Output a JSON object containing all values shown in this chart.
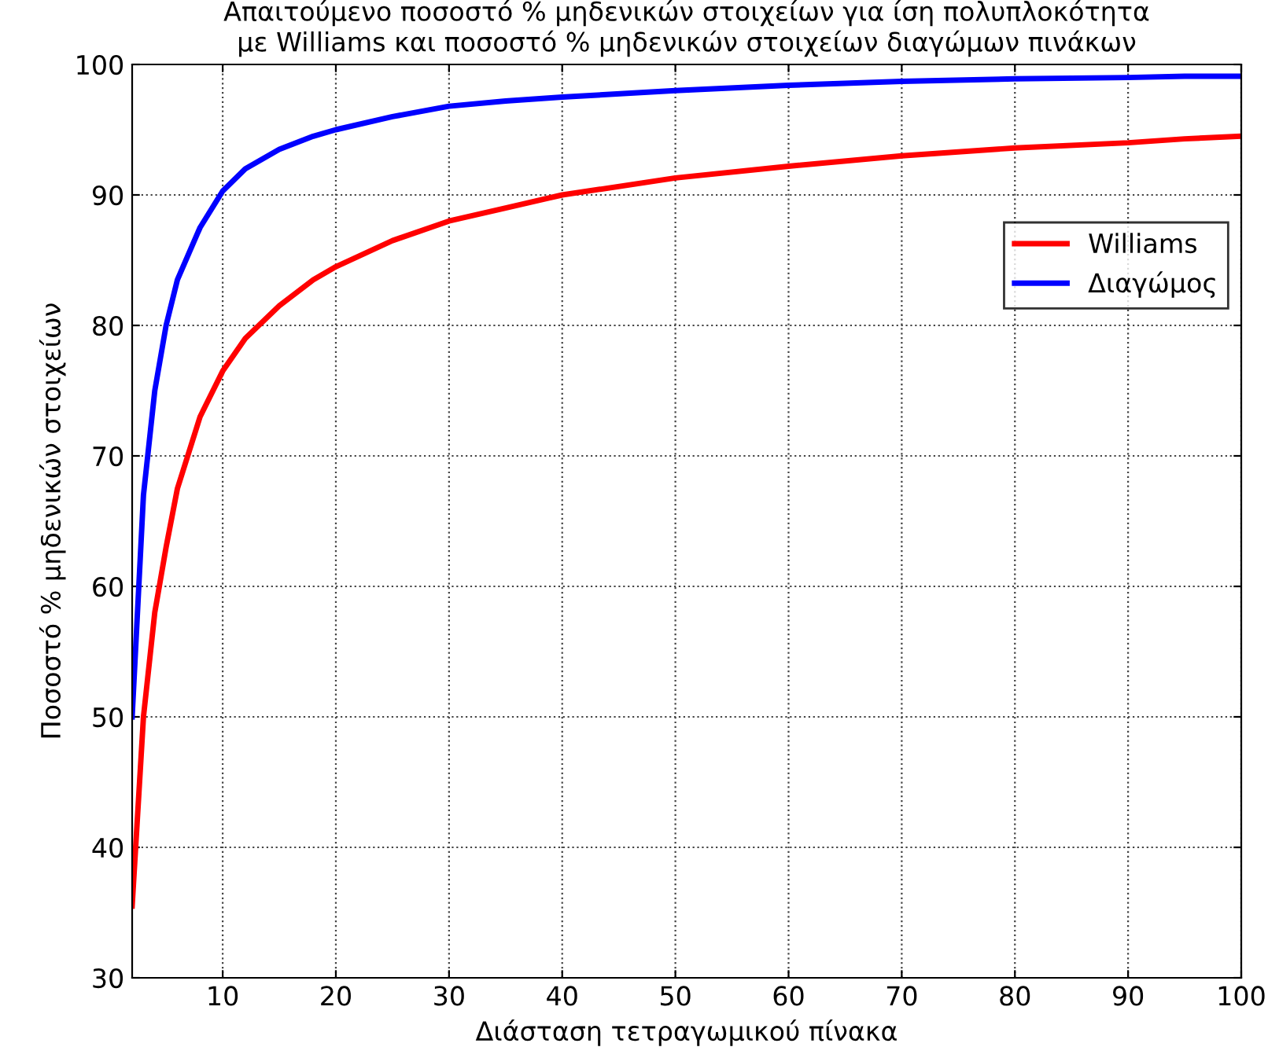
{
  "chart_data": {
    "type": "line",
    "title": "Απαιτούμενο ποσοστό % μηδενικών στοιχείων για ίση πολυπλοκότητα\nμε Williams και ποσοστό % μηδενικών στοιχείων διαγώμων πινάκων",
    "xlabel": "Διάσταση τετραγωμικού πίνακα",
    "ylabel": "Ποσοστό % μηδενικών στοιχείων",
    "x": [
      2,
      3,
      4,
      5,
      6,
      8,
      10,
      12,
      15,
      18,
      20,
      25,
      30,
      35,
      40,
      50,
      60,
      70,
      80,
      90,
      95,
      100
    ],
    "series": [
      {
        "name": "Williams",
        "color": "#ff0000",
        "values": [
          35.5,
          50,
          58,
          63,
          67.5,
          73,
          76.5,
          79,
          81.5,
          83.5,
          84.5,
          86.5,
          88,
          89,
          90,
          91.3,
          92.2,
          93,
          93.6,
          94,
          94.3,
          94.5
        ]
      },
      {
        "name": "Διαγώμος",
        "color": "#0000ff",
        "values": [
          50,
          67,
          75,
          80,
          83.5,
          87.5,
          90.3,
          92,
          93.5,
          94.5,
          95,
          96,
          96.8,
          97.2,
          97.5,
          98,
          98.4,
          98.7,
          98.9,
          99,
          99.1,
          99.1
        ]
      }
    ],
    "xlim": [
      2,
      100
    ],
    "xticks": [
      10,
      20,
      30,
      40,
      50,
      60,
      70,
      80,
      90,
      100
    ],
    "ylim": [
      30,
      100
    ],
    "yticks": [
      30,
      40,
      50,
      60,
      70,
      80,
      90,
      100
    ],
    "grid": true,
    "legend": "right",
    "line_style": "solid",
    "marker": "none"
  }
}
